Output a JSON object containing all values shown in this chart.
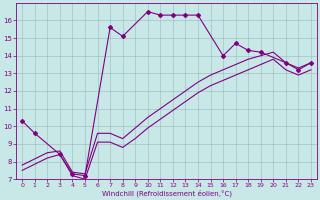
{
  "xlabel": "Windchill (Refroidissement éolien,°C)",
  "background_color": "#c8e8e8",
  "line_color": "#800080",
  "xlim": [
    -0.5,
    23.5
  ],
  "ylim": [
    7,
    17
  ],
  "xticks": [
    0,
    1,
    2,
    3,
    4,
    5,
    6,
    7,
    8,
    9,
    10,
    11,
    12,
    13,
    14,
    15,
    16,
    17,
    18,
    19,
    20,
    21,
    22,
    23
  ],
  "yticks": [
    7,
    8,
    9,
    10,
    11,
    12,
    13,
    14,
    15,
    16
  ],
  "series1_segments": [
    {
      "x": [
        0,
        1
      ],
      "y": [
        10.3,
        9.6
      ]
    },
    {
      "x": [
        3,
        4,
        5
      ],
      "y": [
        8.4,
        7.3,
        7.2
      ]
    },
    {
      "x": [
        7,
        8
      ],
      "y": [
        15.6,
        15.1
      ]
    },
    {
      "x": [
        10,
        11,
        12,
        13,
        14
      ],
      "y": [
        16.5,
        16.3,
        16.3,
        16.3,
        16.3
      ]
    },
    {
      "x": [
        16,
        17,
        18,
        19
      ],
      "y": [
        14.0,
        14.7,
        14.3,
        14.2
      ]
    },
    {
      "x": [
        21,
        22,
        23
      ],
      "y": [
        13.6,
        13.2,
        13.6
      ]
    }
  ],
  "series1_connected_x": [
    0,
    1,
    3,
    4,
    5,
    7,
    8,
    10,
    11,
    12,
    13,
    14,
    16,
    17,
    18,
    19,
    21,
    22,
    23
  ],
  "series1_connected_y": [
    10.3,
    9.6,
    8.4,
    7.3,
    7.2,
    15.6,
    15.1,
    16.5,
    16.3,
    16.3,
    16.3,
    16.3,
    14.0,
    14.7,
    14.3,
    14.2,
    13.6,
    13.2,
    13.6
  ],
  "series2_x": [
    0,
    2,
    3,
    4,
    5,
    6,
    7,
    8,
    9,
    10,
    11,
    12,
    13,
    14,
    15,
    16,
    17,
    18,
    19,
    20,
    21,
    22,
    23
  ],
  "series2_y": [
    7.8,
    8.5,
    8.6,
    7.4,
    7.3,
    9.6,
    9.6,
    9.3,
    9.9,
    10.5,
    11.0,
    11.5,
    12.0,
    12.5,
    12.9,
    13.2,
    13.5,
    13.8,
    14.0,
    14.2,
    13.6,
    13.3,
    13.6
  ],
  "series3_x": [
    0,
    2,
    3,
    4,
    5,
    6,
    7,
    8,
    9,
    10,
    11,
    12,
    13,
    14,
    15,
    16,
    17,
    18,
    19,
    20,
    21,
    22,
    23
  ],
  "series3_y": [
    7.5,
    8.2,
    8.4,
    7.2,
    7.0,
    9.1,
    9.1,
    8.8,
    9.3,
    9.9,
    10.4,
    10.9,
    11.4,
    11.9,
    12.3,
    12.6,
    12.9,
    13.2,
    13.5,
    13.8,
    13.2,
    12.9,
    13.2
  ]
}
